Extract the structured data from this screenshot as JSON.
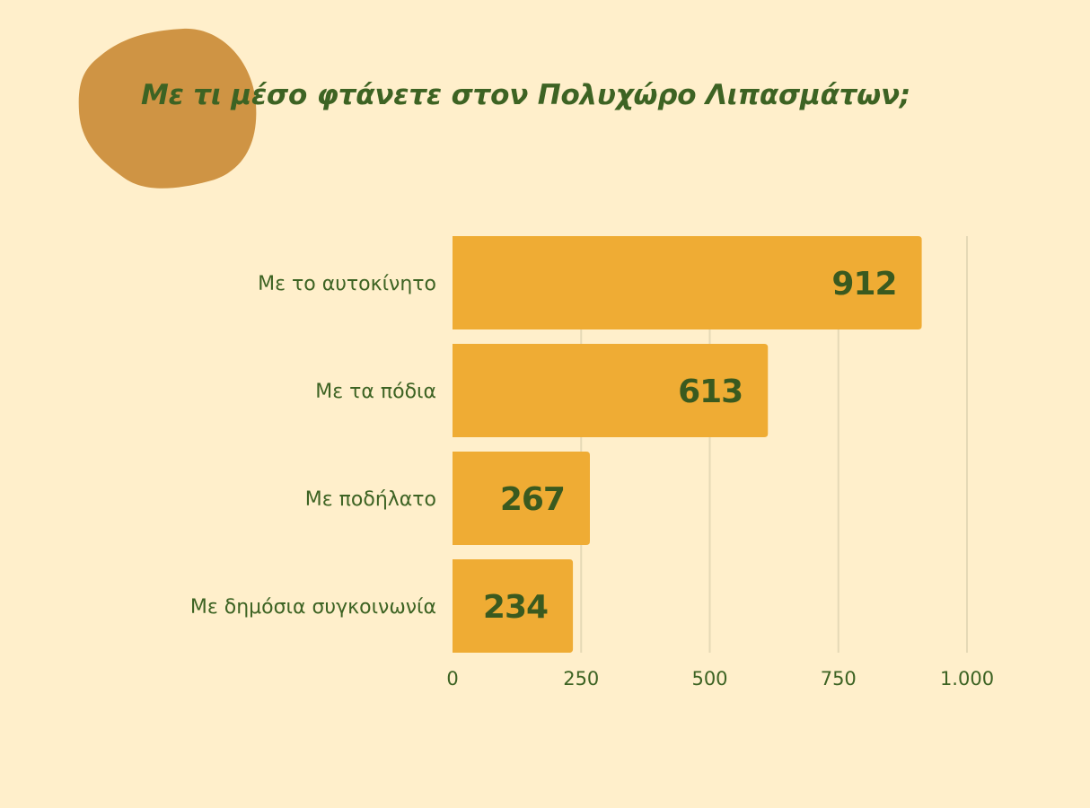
{
  "title": "Με τι μέσο φτάνετε στον Πολυχώρο Λιπασμάτων;",
  "colors": {
    "background": "#FFEFCB",
    "bar": "#EFAC34",
    "text": "#3D6323",
    "value_label": "#3A5A1F",
    "grid": "#E5D9B6",
    "blob": "#CF9444"
  },
  "chart_data": {
    "type": "bar",
    "orientation": "horizontal",
    "categories": [
      "Με το αυτοκίνητο",
      "Με τα πόδια",
      "Με ποδήλατο",
      "Με δημόσια συγκοινωνία"
    ],
    "values": [
      912,
      613,
      267,
      234
    ],
    "value_labels": [
      "912",
      "613",
      "267",
      "234"
    ],
    "xlim": [
      0,
      1000
    ],
    "x_ticks": [
      0,
      250,
      500,
      750,
      1000
    ],
    "x_tick_labels": [
      "0",
      "250",
      "500",
      "750",
      "1.000"
    ],
    "grid": "vertical",
    "legend": "none"
  }
}
